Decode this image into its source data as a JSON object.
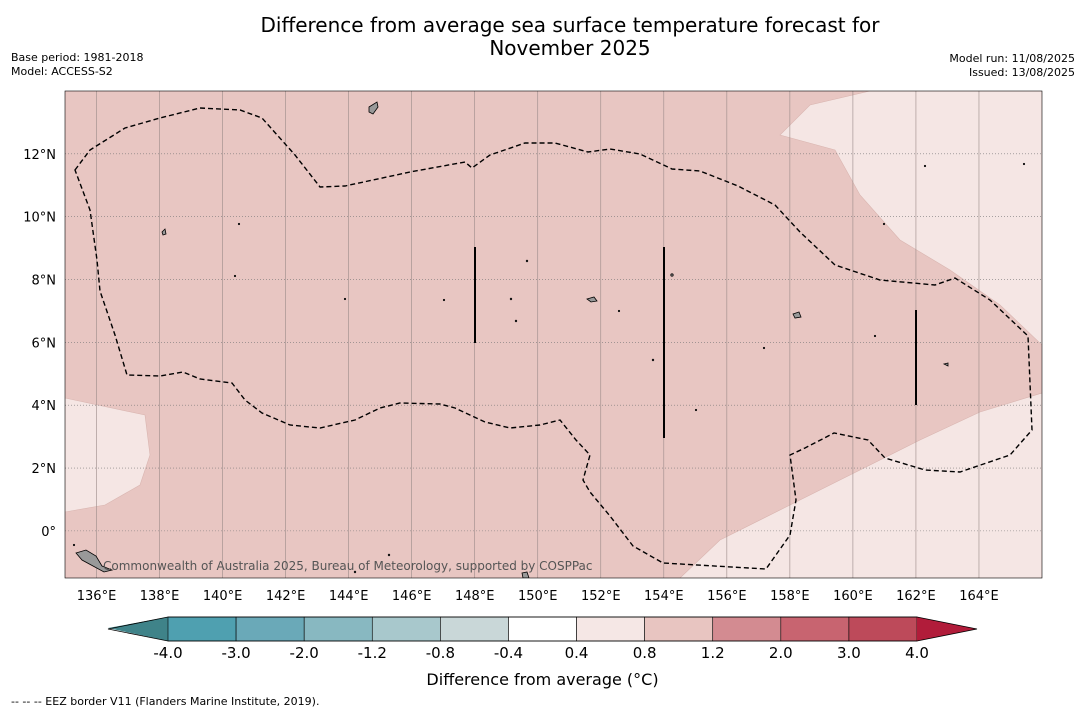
{
  "title": {
    "line1": "Difference from average sea surface temperature forecast for",
    "line2": "November 2025"
  },
  "meta_left": {
    "base_period": "Base period: 1981-2018",
    "model": "Model: ACCESS-S2"
  },
  "meta_right": {
    "model_run": "Model run: 11/08/2025",
    "issued": "Issued: 13/08/2025"
  },
  "copyright": "Commonwealth of Australia 2025, Bureau of Meteorology, supported by COSPPac",
  "map": {
    "lon_ticks": [
      "136°E",
      "138°E",
      "140°E",
      "142°E",
      "144°E",
      "146°E",
      "148°E",
      "150°E",
      "152°E",
      "154°E",
      "156°E",
      "158°E",
      "160°E",
      "162°E",
      "164°E"
    ],
    "lat_ticks": [
      "12°N",
      "10°N",
      "8°N",
      "6°N",
      "4°N",
      "2°N",
      "0°"
    ],
    "lon_values": [
      136,
      138,
      140,
      142,
      144,
      146,
      148,
      150,
      152,
      154,
      156,
      158,
      160,
      162,
      164
    ],
    "lat_values": [
      12,
      10,
      8,
      6,
      4,
      2,
      0
    ],
    "lon_range": [
      135,
      166
    ],
    "lat_range": [
      -1.5,
      14
    ],
    "main_fill_category": "0.8 to 1.2",
    "secondary_fill_category": "0.4 to 0.8",
    "fill_colors": {
      "main": "#e8c6c2",
      "secondary": "#f5e6e4"
    },
    "gridlines": "on",
    "eez_border": "dashed"
  },
  "colorbar": {
    "label": "Difference from average (°C)",
    "tick_labels": [
      "-4.0",
      "-3.0",
      "-2.0",
      "-1.2",
      "-0.8",
      "-0.4",
      "0.4",
      "0.8",
      "1.2",
      "2.0",
      "3.0",
      "4.0"
    ],
    "colors": [
      "#4fa0b0",
      "#6aa9b8",
      "#88b8c1",
      "#a8c8cc",
      "#c9d7d8",
      "#ffffff",
      "#f5e7e5",
      "#e8c5c1",
      "#d38b91",
      "#c86470",
      "#bd4a5a"
    ],
    "extend_low_color": "#3f8389",
    "extend_high_color": "#b11c3a"
  },
  "footnote": "--  --  -- EEZ border V11 (Flanders Marine Institute, 2019)."
}
